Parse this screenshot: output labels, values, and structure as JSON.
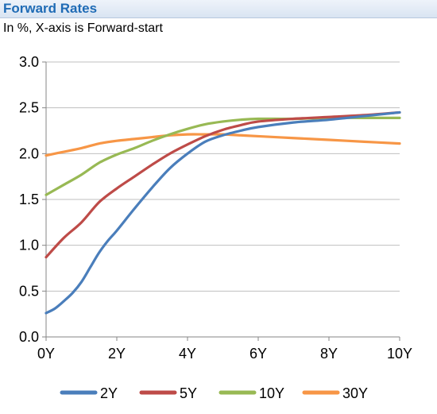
{
  "header": {
    "title": "Forward Rates",
    "subtitle": "In %, X-axis is Forward-start"
  },
  "chart_data": {
    "type": "line",
    "title": "Forward Rates",
    "subtitle": "In %, X-axis is Forward-start",
    "xlabel": "",
    "ylabel": "",
    "xlim": [
      0,
      10
    ],
    "ylim": [
      0,
      3
    ],
    "x_ticks": [
      0,
      2,
      4,
      6,
      8,
      10
    ],
    "x_tick_labels": [
      "0Y",
      "2Y",
      "4Y",
      "6Y",
      "8Y",
      "10Y"
    ],
    "y_ticks": [
      0,
      0.5,
      1,
      1.5,
      2,
      2.5,
      3
    ],
    "y_tick_labels": [
      "0.0",
      "0.5",
      "1.0",
      "1.5",
      "2.0",
      "2.5",
      "3.0"
    ],
    "grid": "horizontal",
    "legend_position": "bottom",
    "series": [
      {
        "name": "2Y",
        "color": "#4a7ebb",
        "x": [
          0,
          0.25,
          0.5,
          0.75,
          1,
          1.25,
          1.5,
          1.75,
          2,
          2.5,
          3,
          3.5,
          4,
          4.5,
          5,
          5.5,
          6,
          7,
          8,
          9,
          10
        ],
        "y": [
          0.26,
          0.31,
          0.39,
          0.48,
          0.6,
          0.76,
          0.92,
          1.05,
          1.16,
          1.4,
          1.63,
          1.84,
          2.0,
          2.13,
          2.2,
          2.25,
          2.29,
          2.34,
          2.37,
          2.41,
          2.45
        ]
      },
      {
        "name": "5Y",
        "color": "#be4b48",
        "x": [
          0,
          0.5,
          1,
          1.5,
          2,
          2.5,
          3,
          3.5,
          4,
          4.5,
          5,
          5.5,
          6,
          7,
          8,
          9,
          10
        ],
        "y": [
          0.87,
          1.08,
          1.25,
          1.47,
          1.62,
          1.75,
          1.88,
          2.0,
          2.1,
          2.19,
          2.26,
          2.31,
          2.35,
          2.38,
          2.4,
          2.42,
          2.45
        ]
      },
      {
        "name": "10Y",
        "color": "#98b954",
        "x": [
          0,
          0.5,
          1,
          1.5,
          2,
          2.5,
          3,
          3.5,
          4,
          4.5,
          5,
          5.5,
          6,
          7,
          8,
          9,
          10
        ],
        "y": [
          1.55,
          1.66,
          1.77,
          1.9,
          1.99,
          2.06,
          2.14,
          2.21,
          2.27,
          2.32,
          2.35,
          2.37,
          2.38,
          2.38,
          2.39,
          2.39,
          2.39
        ]
      },
      {
        "name": "30Y",
        "color": "#f79646",
        "x": [
          0,
          0.5,
          1,
          1.5,
          2,
          2.5,
          3,
          3.5,
          4,
          4.5,
          5,
          5.5,
          6,
          7,
          8,
          9,
          10
        ],
        "y": [
          1.98,
          2.02,
          2.06,
          2.11,
          2.14,
          2.16,
          2.18,
          2.2,
          2.21,
          2.21,
          2.21,
          2.2,
          2.19,
          2.17,
          2.15,
          2.13,
          2.11
        ]
      }
    ]
  }
}
